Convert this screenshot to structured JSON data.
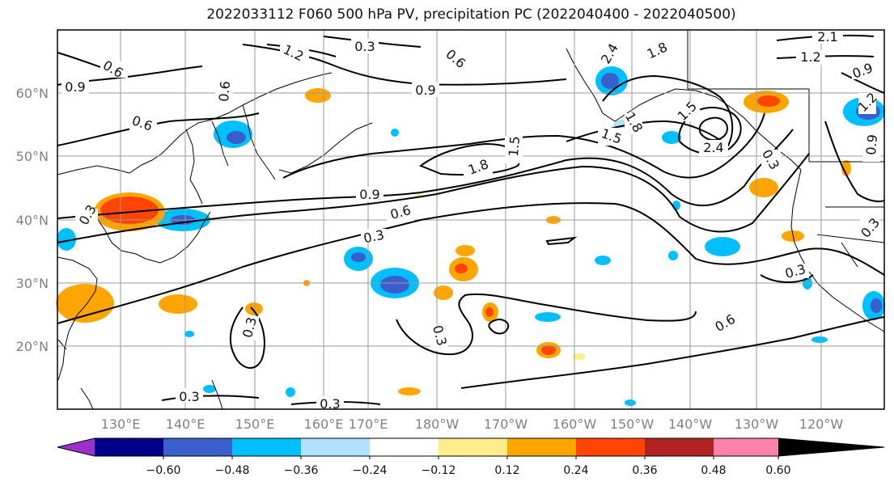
{
  "title": "2022033112 F060 500 hPa PV, precipitation PC (2022040400 - 2022040500)",
  "lat_labels": [
    "60°N",
    "50°N",
    "40°N",
    "30°N",
    "20°N"
  ],
  "lon_labels": [
    "130°E",
    "140°E",
    "150°E",
    "160°E",
    "170°E",
    "180°W",
    "170°W",
    "160°W",
    "150°W",
    "140°W",
    "130°W",
    "120°W"
  ],
  "contour_labels": [
    "0.3",
    "0.6",
    "0.9",
    "1.2",
    "1.5",
    "1.8",
    "2.1",
    "2.4"
  ],
  "colorbar": {
    "tick_labels": [
      "−0.60",
      "−0.48",
      "−0.36",
      "−0.24",
      "−0.12",
      "0.12",
      "0.24",
      "0.36",
      "0.48",
      "0.60"
    ],
    "colors": [
      "#9932CC",
      "#00008B",
      "#3A5FCD",
      "#00BFFF",
      "#B0E2FF",
      "#FFFFFF",
      "#FFEC8B",
      "#FFA500",
      "#FF4500",
      "#B22222",
      "#FF82AB"
    ]
  }
}
